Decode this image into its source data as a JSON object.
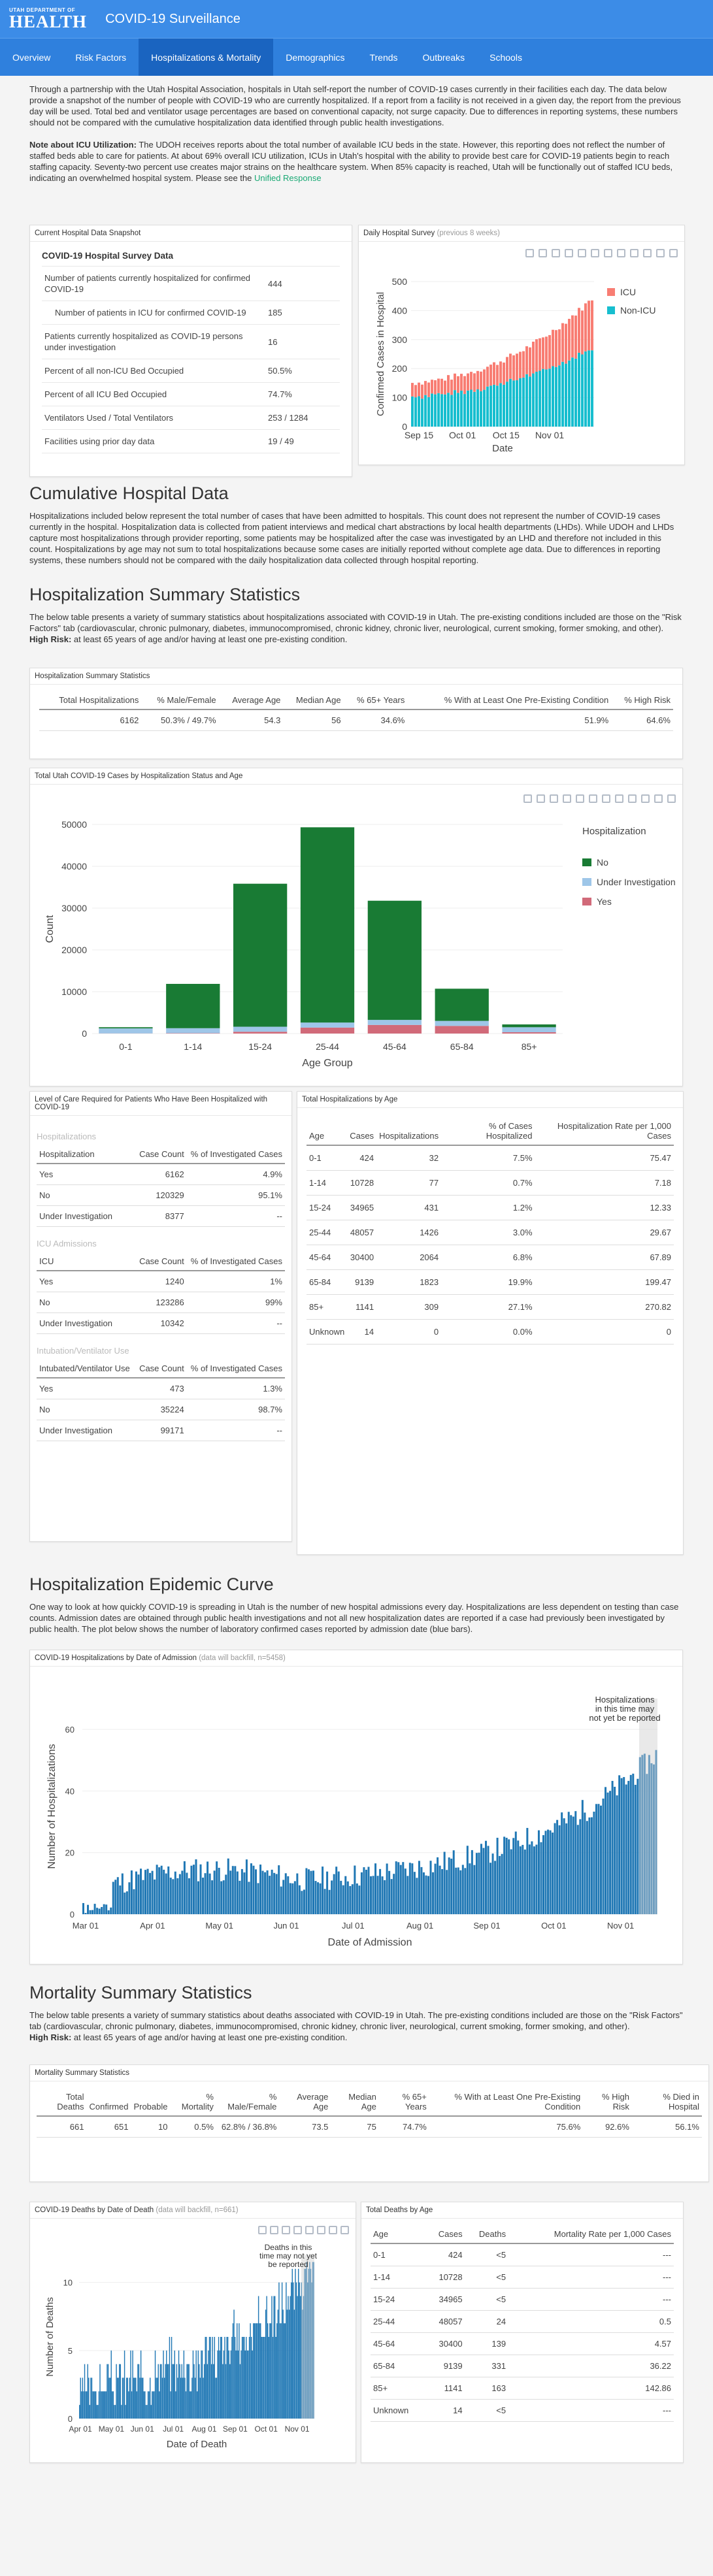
{
  "header": {
    "org_small": "UTAH DEPARTMENT OF",
    "org_big": "HEALTH",
    "title": "COVID-19 Surveillance"
  },
  "nav": [
    "Overview",
    "Risk Factors",
    "Hospitalizations & Mortality",
    "Demographics",
    "Trends",
    "Outbreaks",
    "Schools"
  ],
  "intro": "Through a partnership with the Utah Hospital Association, hospitals in Utah self-report the number of COVID-19 cases currently in their facilities each day. The data below provide a snapshot of the number of people with COVID-19 who are currently hospitalized. If a report from a facility is not received in a given day, the report from the previous day will be used. Total bed and ventilator usage percentages are based on conventional capacity, not surge capacity. Due to differences in reporting systems, these numbers should not be compared with the cumulative hospitalization data identified through public health investigations.",
  "icu_note_label": "Note about ICU Utilization:",
  "icu_note": " The UDOH receives reports about the total number of available ICU beds in the state. However, this reporting does not reflect the number of staffed beds able to care for patients. At about 69% overall ICU utilization, ICUs in Utah's hospital with the ability to provide best care for COVID-19 patients begin to reach staffing capacity. Seventy-two percent use creates major strains on the healthcare system. When 85% capacity is reached, Utah will be functionally out of staffed ICU beds, indicating an overwhelmed hospital system. Please see the ",
  "icu_link": "Unified Response",
  "snapshot": {
    "card_title": "Current Hospital Data Snapshot",
    "title": "COVID-19 Hospital Survey Data",
    "rows": [
      [
        "Number of patients currently hospitalized for confirmed COVID-19",
        "444"
      ],
      [
        "Number of patients in ICU for confirmed COVID-19",
        "185"
      ],
      [
        "Patients currently hospitalized as COVID-19 persons under investigation",
        "16"
      ],
      [
        "Percent of all non-ICU Bed Occupied",
        "50.5%"
      ],
      [
        "Percent of all ICU Bed Occupied",
        "74.7%"
      ],
      [
        "Ventilators Used / Total Ventilators",
        "253 / 1284"
      ],
      [
        "Facilities using prior day data",
        "19 / 49"
      ]
    ]
  },
  "survey": {
    "card_title": "Daily Hospital Survey",
    "card_note": "(previous 8 weeks)"
  },
  "cum_title": "Cumulative Hospital Data",
  "cum_text": "Hospitalizations included below represent the total number of cases that have been admitted to hospitals. This count does not represent the number of COVID-19 cases currently in the hospital. Hospitalization data is collected from patient interviews and medical chart abstractions by local health departments (LHDs). While UDOH and LHDs capture most hospitalizations through provider reporting, some patients may be hospitalized after the case was investigated by an LHD and therefore not included in this count. Hospitalizations by age may not sum to total hospitalizations because some cases are initially reported without complete age data. Due to differences in reporting systems, these numbers should not be compared with the daily hospitalization data collected through hospital reporting.",
  "hss": {
    "title": "Hospitalization Summary Statistics",
    "text": "The below table presents a variety of summary statistics about hospitalizations associated with COVID-19 in Utah. The pre-existing conditions included are those on the \"Risk Factors\" tab (cardiovascular, chronic pulmonary, diabetes, immunocompromised, chronic kidney, chronic liver, neurological, current smoking, former smoking, and other).",
    "risk_label": "High Risk:",
    "risk": " at least 65 years of age and/or having at least one pre-existing condition.",
    "card_title": "Hospitalization Summary Statistics",
    "headers": [
      "Total Hospitalizations",
      "% Male/Female",
      "Average Age",
      "Median Age",
      "% 65+ Years",
      "% With at Least One Pre-Existing Condition",
      "% High Risk"
    ],
    "values": [
      "6162",
      "50.3% / 49.7%",
      "54.3",
      "56",
      "34.6%",
      "51.9%",
      "64.6%"
    ]
  },
  "age_chart": {
    "card_title": "Total Utah COVID-19 Cases by Hospitalization Status and Age"
  },
  "care": {
    "card_title": "Level of Care Required for Patients Who Have Been Hospitalized with COVID-19",
    "groups": [
      {
        "title": "Hospitalizations",
        "h": [
          "Hospitalization",
          "Case Count",
          "% of Investigated Cases"
        ],
        "rows": [
          [
            "Yes",
            "6162",
            "4.9%"
          ],
          [
            "No",
            "120329",
            "95.1%"
          ],
          [
            "Under Investigation",
            "8377",
            "--"
          ]
        ]
      },
      {
        "title": "ICU Admissions",
        "h": [
          "ICU",
          "Case Count",
          "% of Investigated Cases"
        ],
        "rows": [
          [
            "Yes",
            "1240",
            "1%"
          ],
          [
            "No",
            "123286",
            "99%"
          ],
          [
            "Under Investigation",
            "10342",
            "--"
          ]
        ]
      },
      {
        "title": "Intubation/Ventilator Use",
        "h": [
          "Intubated/Ventilator Use",
          "Case Count",
          "% of Investigated Cases"
        ],
        "rows": [
          [
            "Yes",
            "473",
            "1.3%"
          ],
          [
            "No",
            "35224",
            "98.7%"
          ],
          [
            "Under Investigation",
            "99171",
            "--"
          ]
        ]
      }
    ]
  },
  "hosp_age": {
    "card_title": "Total Hospitalizations by Age",
    "headers": [
      "Age",
      "Cases",
      "Hospitalizations",
      "% of Cases Hospitalized",
      "Hospitalization Rate per 1,000 Cases"
    ],
    "rows": [
      [
        "0-1",
        "424",
        "32",
        "7.5%",
        "75.47"
      ],
      [
        "1-14",
        "10728",
        "77",
        "0.7%",
        "7.18"
      ],
      [
        "15-24",
        "34965",
        "431",
        "1.2%",
        "12.33"
      ],
      [
        "25-44",
        "48057",
        "1426",
        "3.0%",
        "29.67"
      ],
      [
        "45-64",
        "30400",
        "2064",
        "6.8%",
        "67.89"
      ],
      [
        "65-84",
        "9139",
        "1823",
        "19.9%",
        "199.47"
      ],
      [
        "85+",
        "1141",
        "309",
        "27.1%",
        "270.82"
      ],
      [
        "Unknown",
        "14",
        "0",
        "0.0%",
        "0"
      ]
    ]
  },
  "epi": {
    "title": "Hospitalization Epidemic Curve",
    "text": "One way to look at how quickly COVID-19 is spreading in Utah is the number of new hospital admissions every day. Hospitalizations are less dependent on testing than case counts. Admission dates are obtained through public health investigations and not all new hospitalization dates are reported if a case had previously been investigated by public health. The plot below shows the number of laboratory confirmed cases reported by admission date (blue bars).",
    "card_title": "COVID-19 Hospitalizations by Date of Admission",
    "card_note": "(data will backfill, n=5458)"
  },
  "mort": {
    "title": "Mortality Summary Statistics",
    "text": "The below table presents a variety of summary statistics about deaths associated with COVID-19 in Utah. The pre-existing conditions included are those on the \"Risk Factors\" tab (cardiovascular, chronic pulmonary, diabetes, immunocompromised, chronic kidney, chronic liver, neurological, current smoking, former smoking, and other).",
    "risk_label": "High Risk:",
    "risk": " at least 65 years of age and/or having at least one pre-existing condition.",
    "card_title": "Mortality Summary Statistics",
    "headers": [
      "Total Deaths",
      "Confirmed",
      "Probable",
      "% Mortality",
      "% Male/Female",
      "Average Age",
      "Median Age",
      "% 65+ Years",
      "% With at Least One Pre-Existing Condition",
      "% High Risk",
      "% Died in Hospital"
    ],
    "values": [
      "661",
      "651",
      "10",
      "0.5%",
      "62.8% / 36.8%",
      "73.5",
      "75",
      "74.7%",
      "75.6%",
      "92.6%",
      "56.1%"
    ]
  },
  "deaths_chart": {
    "card_title": "COVID-19 Deaths by Date of Death",
    "card_note": "(data will backfill, n=661)"
  },
  "deaths_age": {
    "card_title": "Total Deaths by Age",
    "headers": [
      "Age",
      "Cases",
      "Deaths",
      "Mortality Rate per 1,000 Cases"
    ],
    "rows": [
      [
        "0-1",
        "424",
        "<5",
        "---"
      ],
      [
        "1-14",
        "10728",
        "<5",
        "---"
      ],
      [
        "15-24",
        "34965",
        "<5",
        "---"
      ],
      [
        "25-44",
        "48057",
        "24",
        "0.5"
      ],
      [
        "45-64",
        "30400",
        "139",
        "4.57"
      ],
      [
        "65-84",
        "9139",
        "331",
        "36.22"
      ],
      [
        "85+",
        "1141",
        "163",
        "142.86"
      ],
      [
        "Unknown",
        "14",
        "<5",
        "---"
      ]
    ]
  },
  "chart_data": [
    {
      "type": "bar",
      "stacked": true,
      "title": "",
      "ylabel": "Confirmed Cases in Hospital",
      "xlabel": "Date",
      "xticks": [
        "Sep 15",
        "Oct 01",
        "Oct 15",
        "Nov 01"
      ],
      "ylim": [
        0,
        500
      ],
      "yticks": [
        0,
        100,
        200,
        300,
        400,
        500
      ],
      "legend": "top-right",
      "series": [
        {
          "name": "ICU",
          "color": "#f87d73"
        },
        {
          "name": "Non-ICU",
          "color": "#17becf"
        }
      ]
    },
    {
      "type": "bar",
      "stacked": true,
      "xlabel": "Age Group",
      "ylabel": "Count",
      "legend_title": "Hospitalization",
      "categories": [
        "0-1",
        "1-14",
        "15-24",
        "25-44",
        "45-64",
        "65-84",
        "85+"
      ],
      "ylim": [
        0,
        50000
      ],
      "yticks": [
        0,
        10000,
        20000,
        30000,
        40000,
        50000
      ],
      "series": [
        {
          "name": "No",
          "color": "#197b34",
          "values": [
            280,
            10600,
            34200,
            46700,
            28500,
            7700,
            670
          ]
        },
        {
          "name": "Under Investigation",
          "color": "#9ec6e8",
          "values": [
            112,
            51,
            334,
            -69,
            -164,
            -384,
            162
          ]
        },
        {
          "name": "Yes",
          "color": "#d16a79",
          "values": [
            32,
            77,
            431,
            1426,
            2064,
            1823,
            309
          ]
        }
      ]
    },
    {
      "type": "bar",
      "xlabel": "Date of Admission",
      "ylabel": "Number of Hospitalizations",
      "xticks": [
        "Mar 01",
        "Apr 01",
        "May 01",
        "Jun 01",
        "Jul 01",
        "Aug 01",
        "Sep 01",
        "Oct 01",
        "Nov 01"
      ],
      "ylim": [
        0,
        70
      ],
      "yticks": [
        0,
        20,
        40,
        60
      ],
      "annotation": "Hospitalizations in this time may not yet be reported",
      "series": [
        {
          "name": "",
          "color": "#1f77b4"
        }
      ]
    },
    {
      "type": "bar",
      "xlabel": "Date of Death",
      "ylabel": "Number of Deaths",
      "xticks": [
        "Apr 01",
        "May 01",
        "Jun 01",
        "Jul 01",
        "Aug 01",
        "Sep 01",
        "Oct 01",
        "Nov 01"
      ],
      "ylim": [
        0,
        12
      ],
      "yticks": [
        0,
        5,
        10
      ],
      "annotation": "Deaths in this time may not yet be reported",
      "series": [
        {
          "name": "",
          "color": "#1f77b4"
        }
      ]
    }
  ]
}
